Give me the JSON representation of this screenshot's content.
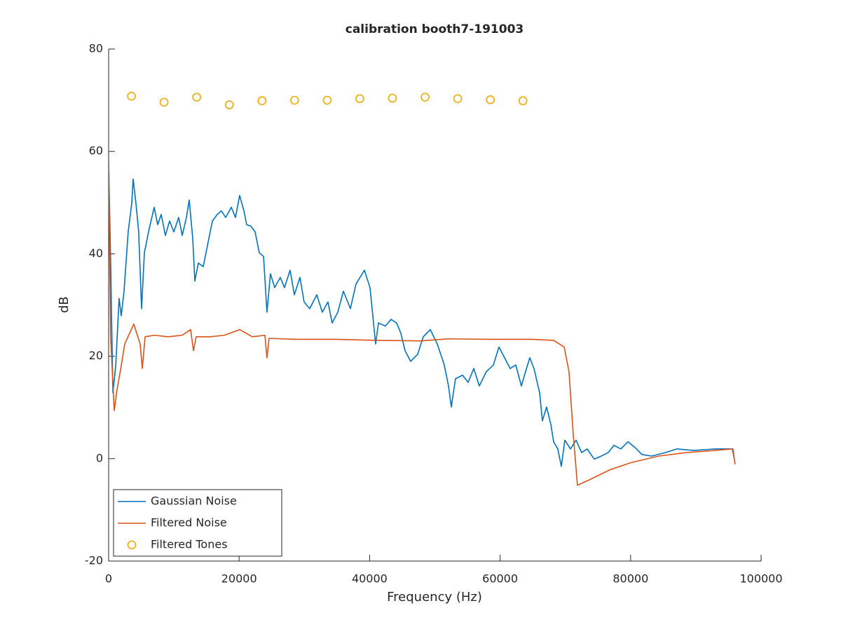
{
  "chart_data": {
    "type": "line",
    "title": "calibration booth7-191003",
    "x_label": "Frequency (Hz)",
    "y_label": "dB",
    "xlim": [
      0,
      100000
    ],
    "xticks": [
      0,
      20000,
      40000,
      60000,
      80000,
      100000
    ],
    "ylim": [
      -20,
      80
    ],
    "yticks": [
      -20,
      0,
      20,
      40,
      60,
      80
    ],
    "legend": "lower left",
    "series": [
      {
        "name": "Gaussian Noise",
        "color": "#0072bd",
        "mode": "line",
        "x": [
          0,
          300,
          650,
          1100,
          1600,
          1930,
          2360,
          3000,
          3540,
          3760,
          4190,
          4600,
          5050,
          5480,
          6120,
          6980,
          7520,
          8050,
          8700,
          9340,
          9990,
          10740,
          11280,
          11920,
          12350,
          12890,
          13210,
          13750,
          14500,
          15140,
          15900,
          16650,
          17290,
          17940,
          18800,
          19440,
          20080,
          20730,
          21160,
          21800,
          22450,
          23090,
          23740,
          24270,
          24800,
          25450,
          26310,
          26950,
          27810,
          28460,
          29320,
          29960,
          30820,
          31900,
          32750,
          33610,
          34260,
          35120,
          35980,
          37050,
          37910,
          39200,
          40060,
          40920,
          41350,
          42420,
          43280,
          44140,
          44790,
          45430,
          46290,
          47370,
          48220,
          49300,
          50370,
          51440,
          52090,
          52520,
          53160,
          54240,
          55100,
          55960,
          56820,
          57890,
          58970,
          59820,
          60680,
          61540,
          62400,
          63260,
          63900,
          64550,
          65190,
          66050,
          66480,
          67120,
          67770,
          68200,
          68840,
          69380,
          69920,
          70780,
          71640,
          72490,
          73350,
          74430,
          75500,
          76580,
          77440,
          78510,
          79590,
          80660,
          81730,
          83240,
          85380,
          87100,
          89680,
          92900,
          95590,
          95900
        ],
        "values": [
          58,
          38.9,
          12.9,
          18.3,
          31.3,
          27.9,
          32.7,
          44.3,
          49.8,
          54.6,
          49.8,
          44.3,
          29.3,
          40.2,
          44.3,
          49.1,
          45.7,
          47.7,
          43.6,
          46.4,
          44.3,
          47.1,
          43.6,
          47.1,
          50.5,
          43,
          34.7,
          38.2,
          37.5,
          41.6,
          46.4,
          47.7,
          48.4,
          47.1,
          49.1,
          47.1,
          51.4,
          48.4,
          45.7,
          45.4,
          44.3,
          40.2,
          39.5,
          28.6,
          36.1,
          33.4,
          35.4,
          33.4,
          36.8,
          32,
          35.4,
          30.6,
          29.3,
          32,
          28.6,
          30.6,
          26.5,
          28.6,
          32.7,
          29.3,
          34.1,
          36.8,
          33.4,
          22.4,
          26.5,
          25.9,
          27.2,
          26.5,
          24.5,
          21.1,
          19,
          20.4,
          23.8,
          25.2,
          22.4,
          18.3,
          14.2,
          10.1,
          15.6,
          16.3,
          14.9,
          17.6,
          14.2,
          17,
          18.3,
          21.8,
          19.7,
          17.6,
          18.3,
          14.2,
          17,
          19.7,
          17.6,
          12.9,
          7.4,
          10.1,
          6.7,
          3.3,
          1.9,
          -1.5,
          3.6,
          1.9,
          3.6,
          1.2,
          1.9,
          -0.1,
          0.5,
          1.2,
          2.6,
          1.9,
          3.3,
          2.2,
          0.8,
          0.5,
          1.2,
          1.9,
          1.6,
          1.9,
          1.9,
          -0.1
        ]
      },
      {
        "name": "Filtered Noise",
        "color": "#d95319",
        "mode": "line",
        "x": [
          0,
          300,
          860,
          1290,
          1860,
          2470,
          3220,
          3860,
          4400,
          4830,
          5160,
          5590,
          6980,
          9130,
          11280,
          12570,
          13000,
          13420,
          15570,
          17720,
          20080,
          22020,
          23950,
          24270,
          24590,
          28460,
          34900,
          41350,
          47800,
          52090,
          58530,
          64980,
          68200,
          69810,
          70560,
          71210,
          71850,
          73570,
          76790,
          80010,
          84310,
          88600,
          92900,
          95690,
          96010
        ],
        "values": [
          60,
          23.8,
          9.4,
          13.5,
          17.6,
          22.4,
          24.5,
          26.3,
          24.1,
          22.4,
          17.6,
          23.8,
          24.1,
          23.8,
          24.1,
          25.2,
          21.1,
          23.8,
          23.8,
          24.1,
          25.2,
          23.8,
          24.1,
          19.7,
          23.5,
          23.3,
          23.3,
          23.1,
          23,
          23.4,
          23.3,
          23.3,
          23.1,
          21.8,
          17,
          4.7,
          -5.2,
          -4.2,
          -2.2,
          -0.8,
          0.5,
          1.2,
          1.6,
          1.9,
          -1.1
        ]
      },
      {
        "name": "Filtered Tones",
        "color": "#edb120",
        "mode": "marker",
        "x": [
          3500,
          8500,
          13500,
          18500,
          23500,
          28500,
          33500,
          38500,
          43500,
          48500,
          53500,
          58500,
          63500
        ],
        "values": [
          70.8,
          69.6,
          70.6,
          69.1,
          69.9,
          70,
          70,
          70.3,
          70.4,
          70.6,
          70.3,
          70.1,
          69.9
        ]
      }
    ]
  }
}
